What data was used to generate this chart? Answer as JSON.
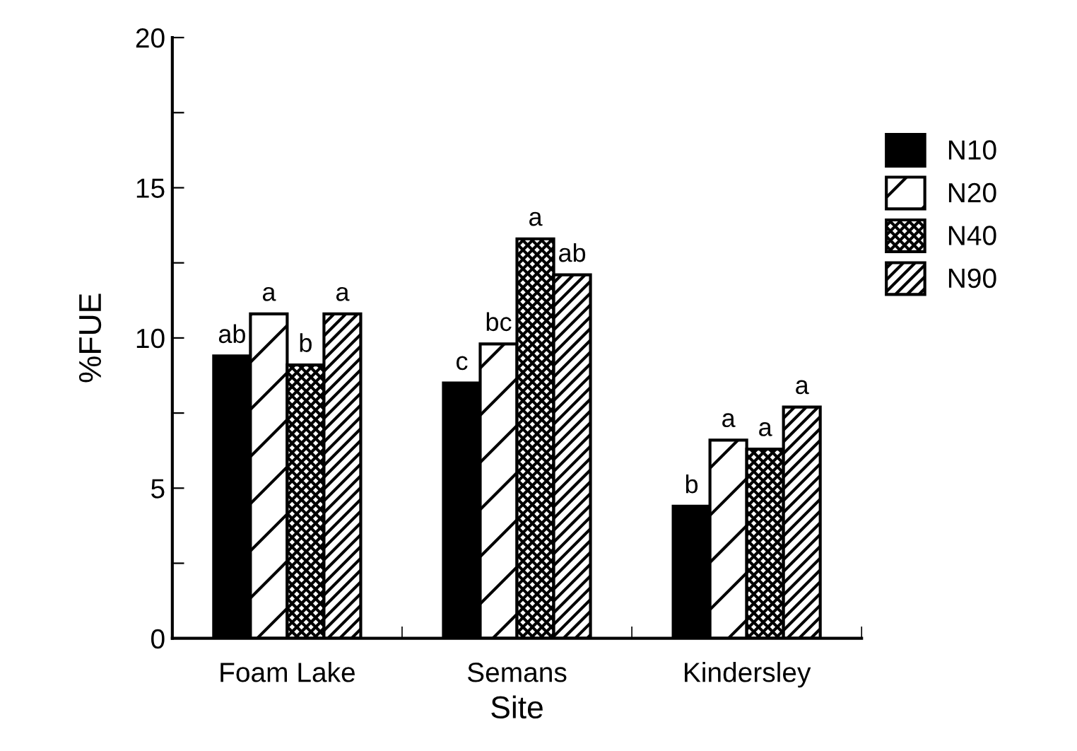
{
  "chart_data": {
    "type": "bar",
    "xlabel": "Site",
    "ylabel": "%FUE",
    "categories": [
      "Foam Lake",
      "Semans",
      "Kindersley"
    ],
    "series": [
      {
        "name": "N10",
        "color": "#000000",
        "values": [
          9.4,
          8.5,
          4.4
        ],
        "value_labels": [
          "ab",
          "c",
          "b"
        ]
      },
      {
        "name": "N20",
        "color": "#000000",
        "values": [
          10.8,
          9.8,
          6.6
        ],
        "value_labels": [
          "a",
          "bc",
          "a"
        ]
      },
      {
        "name": "N40",
        "color": "#000000",
        "values": [
          9.1,
          13.3,
          6.3
        ],
        "value_labels": [
          "b",
          "a",
          "a"
        ]
      },
      {
        "name": "N90",
        "color": "#000000",
        "values": [
          10.8,
          12.1,
          7.7
        ],
        "value_labels": [
          "a",
          "ab",
          "a"
        ]
      }
    ],
    "ylim": [
      0,
      20
    ],
    "yticks": [
      0,
      {
        "value": 2.5,
        "label": null
      },
      5,
      {
        "value": 7.5,
        "label": null
      },
      10,
      {
        "value": 12.5,
        "label": null
      },
      15,
      {
        "value": 17.5,
        "label": null
      },
      20
    ],
    "legend": "top right",
    "grid": false
  }
}
